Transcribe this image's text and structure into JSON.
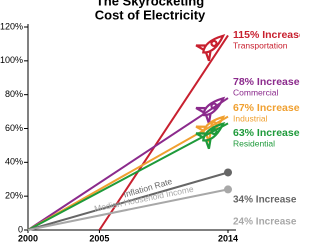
{
  "chart_data": {
    "type": "line",
    "title": [
      "The Skyrocketing",
      "Cost of Electricity"
    ],
    "xlim": [
      2000,
      2014
    ],
    "xticks": [
      2000,
      2005,
      2014
    ],
    "ylim": [
      0,
      120
    ],
    "yticks": [
      0,
      {
        "value": 20,
        "label": "20%"
      },
      {
        "value": 40,
        "label": "40%"
      },
      {
        "value": 60,
        "label": "60%"
      },
      {
        "value": 80,
        "label": "80%"
      },
      {
        "value": 100,
        "label": "100%"
      },
      {
        "value": 120,
        "label": "120%"
      }
    ],
    "series": [
      {
        "name": "Transportation",
        "color": "#c8202f",
        "x": [
          2005,
          2014
        ],
        "values": [
          0,
          115
        ],
        "end_label": "115% Increase",
        "marker": "rocket",
        "name_position": "end"
      },
      {
        "name": "Commercial",
        "color": "#8b2a8c",
        "x": [
          2000,
          2014
        ],
        "values": [
          0,
          78
        ],
        "end_label": "78% Increase",
        "marker": "rocket",
        "name_position": "end"
      },
      {
        "name": "Industrial",
        "color": "#f0a030",
        "x": [
          2000,
          2014
        ],
        "values": [
          0,
          67
        ],
        "end_label": "67% Increase",
        "marker": "rocket",
        "name_position": "end"
      },
      {
        "name": "Residential",
        "color": "#1e9a3a",
        "x": [
          2000,
          2014
        ],
        "values": [
          0,
          63
        ],
        "end_label": "63% Increase",
        "marker": "rocket",
        "name_position": "end"
      },
      {
        "name": "Inflation Rate",
        "color": "#666666",
        "x": [
          2000,
          2014
        ],
        "values": [
          0,
          34
        ],
        "end_label": "34% Increase",
        "marker": "dot",
        "name_position": "line"
      },
      {
        "name": "Median Household Income",
        "color": "#a8a8a8",
        "x": [
          2000,
          2014
        ],
        "values": [
          0,
          24
        ],
        "end_label": "24% Increase",
        "marker": "dot",
        "name_position": "line"
      }
    ]
  }
}
